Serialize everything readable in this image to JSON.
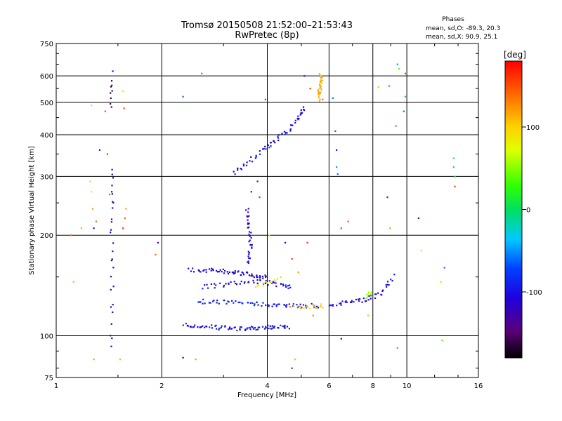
{
  "chart_data": {
    "type": "scatter",
    "title": "Tromsø 20150508 21:52:00–21:53:43",
    "subtitle": "RwPretec (8p)",
    "xlabel": "Frequency [MHz]",
    "ylabel": "Stationary phase Virtual Height [km]",
    "x_scale": "log",
    "y_scale": "log",
    "xlim": [
      1,
      16
    ],
    "ylim": [
      75,
      750
    ],
    "x_ticks": [
      "1",
      "2",
      "4",
      "6",
      "8",
      "10",
      "16"
    ],
    "y_ticks": [
      "75",
      "100",
      "200",
      "300",
      "400",
      "500",
      "600",
      "750"
    ],
    "grid": true,
    "stats": {
      "heading": "Phases",
      "line1": "mean, sd,O: -89.3, 20.3",
      "line2": "mean, sd,X:  90.9, 25.1"
    },
    "colorbar": {
      "label": "[deg]",
      "range": [
        -180,
        180
      ],
      "ticks": [
        "100",
        "0",
        "-100"
      ]
    },
    "traces": [
      {
        "segments": [
          [
            2.3,
            108
          ],
          [
            2.8,
            106
          ],
          [
            3.4,
            105
          ],
          [
            4.0,
            106
          ],
          [
            4.6,
            106
          ]
        ],
        "phase": -100,
        "count": 80
      },
      {
        "segments": [
          [
            2.5,
            127
          ],
          [
            3.0,
            126
          ],
          [
            3.6,
            125
          ],
          [
            4.2,
            124
          ],
          [
            4.8,
            123
          ],
          [
            5.6,
            123
          ]
        ],
        "phase": -90,
        "count": 70
      },
      {
        "segments": [
          [
            4.5,
            123
          ],
          [
            5.2,
            122
          ],
          [
            5.8,
            123
          ]
        ],
        "phase": 110,
        "count": 18
      },
      {
        "segments": [
          [
            6.0,
            124
          ],
          [
            6.8,
            126
          ],
          [
            7.6,
            128
          ],
          [
            8.4,
            133
          ],
          [
            9.2,
            152
          ]
        ],
        "phase": -100,
        "count": 45
      },
      {
        "segments": [
          [
            7.6,
            130
          ],
          [
            8.0,
            136
          ]
        ],
        "phase": 60,
        "count": 8
      },
      {
        "segments": [
          [
            2.4,
            158
          ],
          [
            2.8,
            157
          ],
          [
            3.2,
            155
          ],
          [
            3.6,
            152
          ],
          [
            4.0,
            150
          ]
        ],
        "phase": -110,
        "count": 60
      },
      {
        "segments": [
          [
            2.6,
            140
          ],
          [
            3.0,
            142
          ],
          [
            3.4,
            145
          ],
          [
            3.9,
            145
          ],
          [
            4.3,
            142
          ],
          [
            4.7,
            140
          ]
        ],
        "phase": -100,
        "count": 50
      },
      {
        "segments": [
          [
            3.7,
            140
          ],
          [
            4.0,
            145
          ],
          [
            4.4,
            150
          ]
        ],
        "phase": 90,
        "count": 14
      },
      {
        "segments": [
          [
            3.5,
            165
          ],
          [
            3.6,
            185
          ],
          [
            3.55,
            210
          ],
          [
            3.5,
            240
          ]
        ],
        "phase": -110,
        "count": 35
      },
      {
        "segments": [
          [
            3.2,
            305
          ],
          [
            3.5,
            330
          ],
          [
            3.9,
            360
          ],
          [
            4.2,
            385
          ],
          [
            4.6,
            410
          ],
          [
            4.9,
            450
          ],
          [
            5.1,
            480
          ]
        ],
        "phase": -100,
        "count": 60
      },
      {
        "segments": [
          [
            5.6,
            505
          ],
          [
            5.65,
            560
          ],
          [
            5.7,
            605
          ]
        ],
        "phase": 110,
        "count": 30
      },
      {
        "segments": [
          [
            1.44,
            90
          ],
          [
            1.44,
            150
          ],
          [
            1.44,
            230
          ],
          [
            1.44,
            320
          ]
        ],
        "phase": -120,
        "count": 28
      },
      {
        "segments": [
          [
            1.44,
            480
          ],
          [
            1.44,
            590
          ]
        ],
        "phase": -150,
        "count": 8
      }
    ],
    "scatter_points": [
      {
        "x": 1.1,
        "y": 200,
        "phase": 140
      },
      {
        "x": 1.12,
        "y": 145,
        "phase": 110
      },
      {
        "x": 1.18,
        "y": 210,
        "phase": 115
      },
      {
        "x": 1.25,
        "y": 290,
        "phase": 100
      },
      {
        "x": 1.26,
        "y": 270,
        "phase": 95
      },
      {
        "x": 1.27,
        "y": 240,
        "phase": 120
      },
      {
        "x": 1.28,
        "y": 210,
        "phase": -150
      },
      {
        "x": 1.26,
        "y": 490,
        "phase": 100
      },
      {
        "x": 1.33,
        "y": 360,
        "phase": -100
      },
      {
        "x": 1.38,
        "y": 470,
        "phase": 150
      },
      {
        "x": 1.4,
        "y": 350,
        "phase": 160
      },
      {
        "x": 1.42,
        "y": 265,
        "phase": 150
      },
      {
        "x": 1.3,
        "y": 220,
        "phase": 140
      },
      {
        "x": 1.45,
        "y": 620,
        "phase": -100
      },
      {
        "x": 1.55,
        "y": 540,
        "phase": 90
      },
      {
        "x": 1.56,
        "y": 480,
        "phase": 150
      },
      {
        "x": 1.52,
        "y": 85,
        "phase": 110
      },
      {
        "x": 1.28,
        "y": 85,
        "phase": 30
      },
      {
        "x": 1.58,
        "y": 240,
        "phase": 120
      },
      {
        "x": 1.57,
        "y": 225,
        "phase": 140
      },
      {
        "x": 1.55,
        "y": 210,
        "phase": 160
      },
      {
        "x": 1.92,
        "y": 175,
        "phase": 140
      },
      {
        "x": 1.95,
        "y": 190,
        "phase": -120
      },
      {
        "x": 2.3,
        "y": 520,
        "phase": -60
      },
      {
        "x": 2.6,
        "y": 610,
        "phase": 150
      },
      {
        "x": 2.3,
        "y": 86,
        "phase": -110
      },
      {
        "x": 2.5,
        "y": 85,
        "phase": 120
      },
      {
        "x": 3.95,
        "y": 510,
        "phase": -60
      },
      {
        "x": 4.7,
        "y": 80,
        "phase": -70
      },
      {
        "x": 4.8,
        "y": 85,
        "phase": 110
      },
      {
        "x": 5.1,
        "y": 600,
        "phase": -90
      },
      {
        "x": 5.3,
        "y": 550,
        "phase": 160
      },
      {
        "x": 5.75,
        "y": 510,
        "phase": 140
      },
      {
        "x": 6.15,
        "y": 515,
        "phase": -60
      },
      {
        "x": 6.25,
        "y": 410,
        "phase": 170
      },
      {
        "x": 6.3,
        "y": 360,
        "phase": -100
      },
      {
        "x": 6.3,
        "y": 320,
        "phase": -50
      },
      {
        "x": 6.35,
        "y": 305,
        "phase": -60
      },
      {
        "x": 6.5,
        "y": 210,
        "phase": 160
      },
      {
        "x": 6.8,
        "y": 220,
        "phase": 150
      },
      {
        "x": 6.5,
        "y": 98,
        "phase": -100
      },
      {
        "x": 7.75,
        "y": 115,
        "phase": 50
      },
      {
        "x": 8.3,
        "y": 555,
        "phase": 110
      },
      {
        "x": 8.8,
        "y": 260,
        "phase": -80
      },
      {
        "x": 8.9,
        "y": 560,
        "phase": 150
      },
      {
        "x": 8.95,
        "y": 210,
        "phase": 120
      },
      {
        "x": 9.4,
        "y": 650,
        "phase": -50
      },
      {
        "x": 9.5,
        "y": 630,
        "phase": 40
      },
      {
        "x": 9.3,
        "y": 425,
        "phase": 150
      },
      {
        "x": 9.4,
        "y": 92,
        "phase": 140
      },
      {
        "x": 9.8,
        "y": 470,
        "phase": -60
      },
      {
        "x": 9.9,
        "y": 610,
        "phase": 160
      },
      {
        "x": 9.9,
        "y": 520,
        "phase": -40
      },
      {
        "x": 10.8,
        "y": 225,
        "phase": -150
      },
      {
        "x": 11.0,
        "y": 180,
        "phase": 60
      },
      {
        "x": 12.5,
        "y": 145,
        "phase": 100
      },
      {
        "x": 12.6,
        "y": 97,
        "phase": 40
      },
      {
        "x": 12.8,
        "y": 160,
        "phase": -60
      },
      {
        "x": 13.6,
        "y": 340,
        "phase": -30
      },
      {
        "x": 13.6,
        "y": 320,
        "phase": -40
      },
      {
        "x": 13.7,
        "y": 300,
        "phase": 20
      },
      {
        "x": 13.7,
        "y": 280,
        "phase": 160
      },
      {
        "x": 3.6,
        "y": 270,
        "phase": -100
      },
      {
        "x": 3.8,
        "y": 260,
        "phase": -60
      },
      {
        "x": 3.75,
        "y": 290,
        "phase": -90
      },
      {
        "x": 4.05,
        "y": 200,
        "phase": 100
      },
      {
        "x": 4.5,
        "y": 190,
        "phase": -110
      },
      {
        "x": 4.7,
        "y": 170,
        "phase": 160
      },
      {
        "x": 4.9,
        "y": 155,
        "phase": 120
      },
      {
        "x": 5.2,
        "y": 190,
        "phase": 160
      },
      {
        "x": 5.4,
        "y": 115,
        "phase": 130
      }
    ]
  }
}
